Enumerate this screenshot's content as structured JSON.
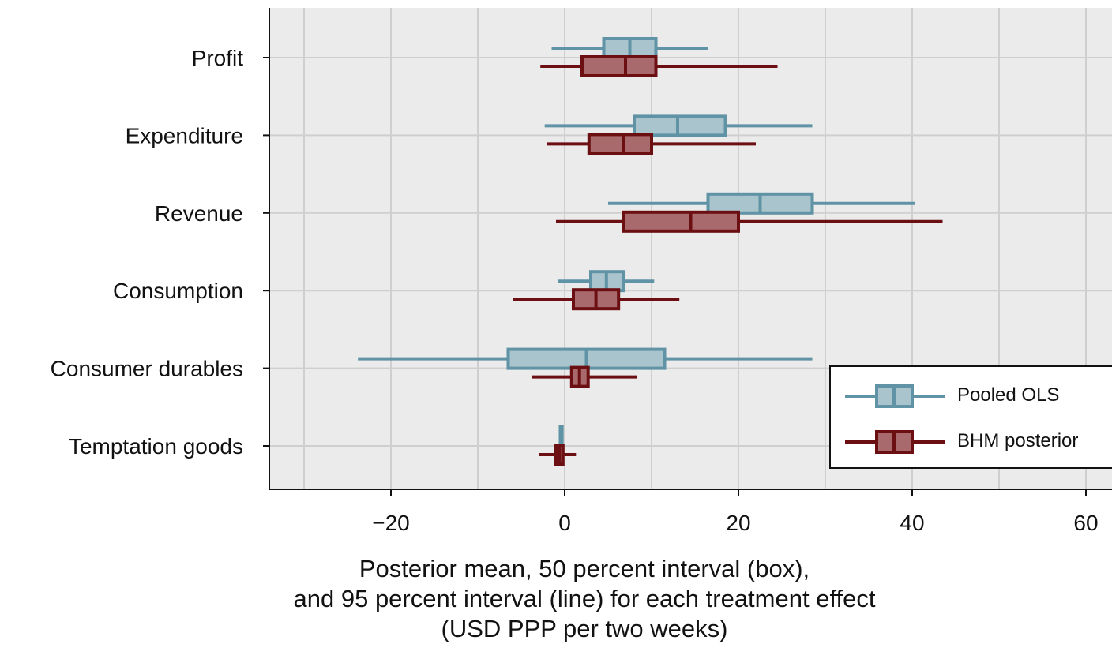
{
  "chart_data": {
    "type": "boxplot-interval",
    "xlabel_lines": [
      "Posterior mean, 50 percent interval (box),",
      "and 95 percent interval (line) for each treatment effect",
      "(USD PPP per two weeks)"
    ],
    "xlim": [
      -34,
      62
    ],
    "xticks": [
      -20,
      0,
      20,
      40,
      60
    ],
    "xtick_labels": [
      "−20",
      "0",
      "20",
      "40",
      "60"
    ],
    "minor_gridlines": [
      -30,
      -10,
      10,
      30,
      50
    ],
    "grid": true,
    "legend_position": "bottom-right",
    "categories": [
      "Profit",
      "Expenditure",
      "Revenue",
      "Consumption",
      "Consumer durables",
      "Temptation goods"
    ],
    "series": [
      {
        "name": "Pooled OLS",
        "color": "#5f93a5",
        "fill": "#a9c4cc",
        "values": [
          {
            "lo95": -1.5,
            "lo50": 4.5,
            "mean": 7.5,
            "hi50": 10.5,
            "hi95": 16.5
          },
          {
            "lo95": -2.3,
            "lo50": 8.0,
            "mean": 13.0,
            "hi50": 18.5,
            "hi95": 28.5
          },
          {
            "lo95": 5.0,
            "lo50": 16.5,
            "mean": 22.5,
            "hi50": 28.5,
            "hi95": 40.3
          },
          {
            "lo95": -0.8,
            "lo50": 3.0,
            "mean": 4.8,
            "hi50": 6.8,
            "hi95": 10.3
          },
          {
            "lo95": -23.8,
            "lo50": -6.5,
            "mean": 2.5,
            "hi50": 11.5,
            "hi95": 28.5
          },
          {
            "lo95": -0.6,
            "lo50": -0.5,
            "mean": -0.4,
            "hi50": -0.3,
            "hi95": -0.2
          }
        ]
      },
      {
        "name": "BHM posterior",
        "color": "#6b0f13",
        "fill": "#a86a6c",
        "values": [
          {
            "lo95": -2.8,
            "lo50": 2.0,
            "mean": 7.0,
            "hi50": 10.5,
            "hi95": 24.5
          },
          {
            "lo95": -2.0,
            "lo50": 2.8,
            "mean": 6.8,
            "hi50": 10.0,
            "hi95": 22.0
          },
          {
            "lo95": -1.0,
            "lo50": 6.8,
            "mean": 14.5,
            "hi50": 20.0,
            "hi95": 43.5
          },
          {
            "lo95": -6.0,
            "lo50": 1.0,
            "mean": 3.6,
            "hi50": 6.2,
            "hi95": 13.2
          },
          {
            "lo95": -3.8,
            "lo50": 0.8,
            "mean": 1.7,
            "hi50": 2.7,
            "hi95": 8.3
          },
          {
            "lo95": -3.0,
            "lo50": -1.0,
            "mean": -0.6,
            "hi50": -0.2,
            "hi95": 1.3
          }
        ]
      }
    ]
  }
}
